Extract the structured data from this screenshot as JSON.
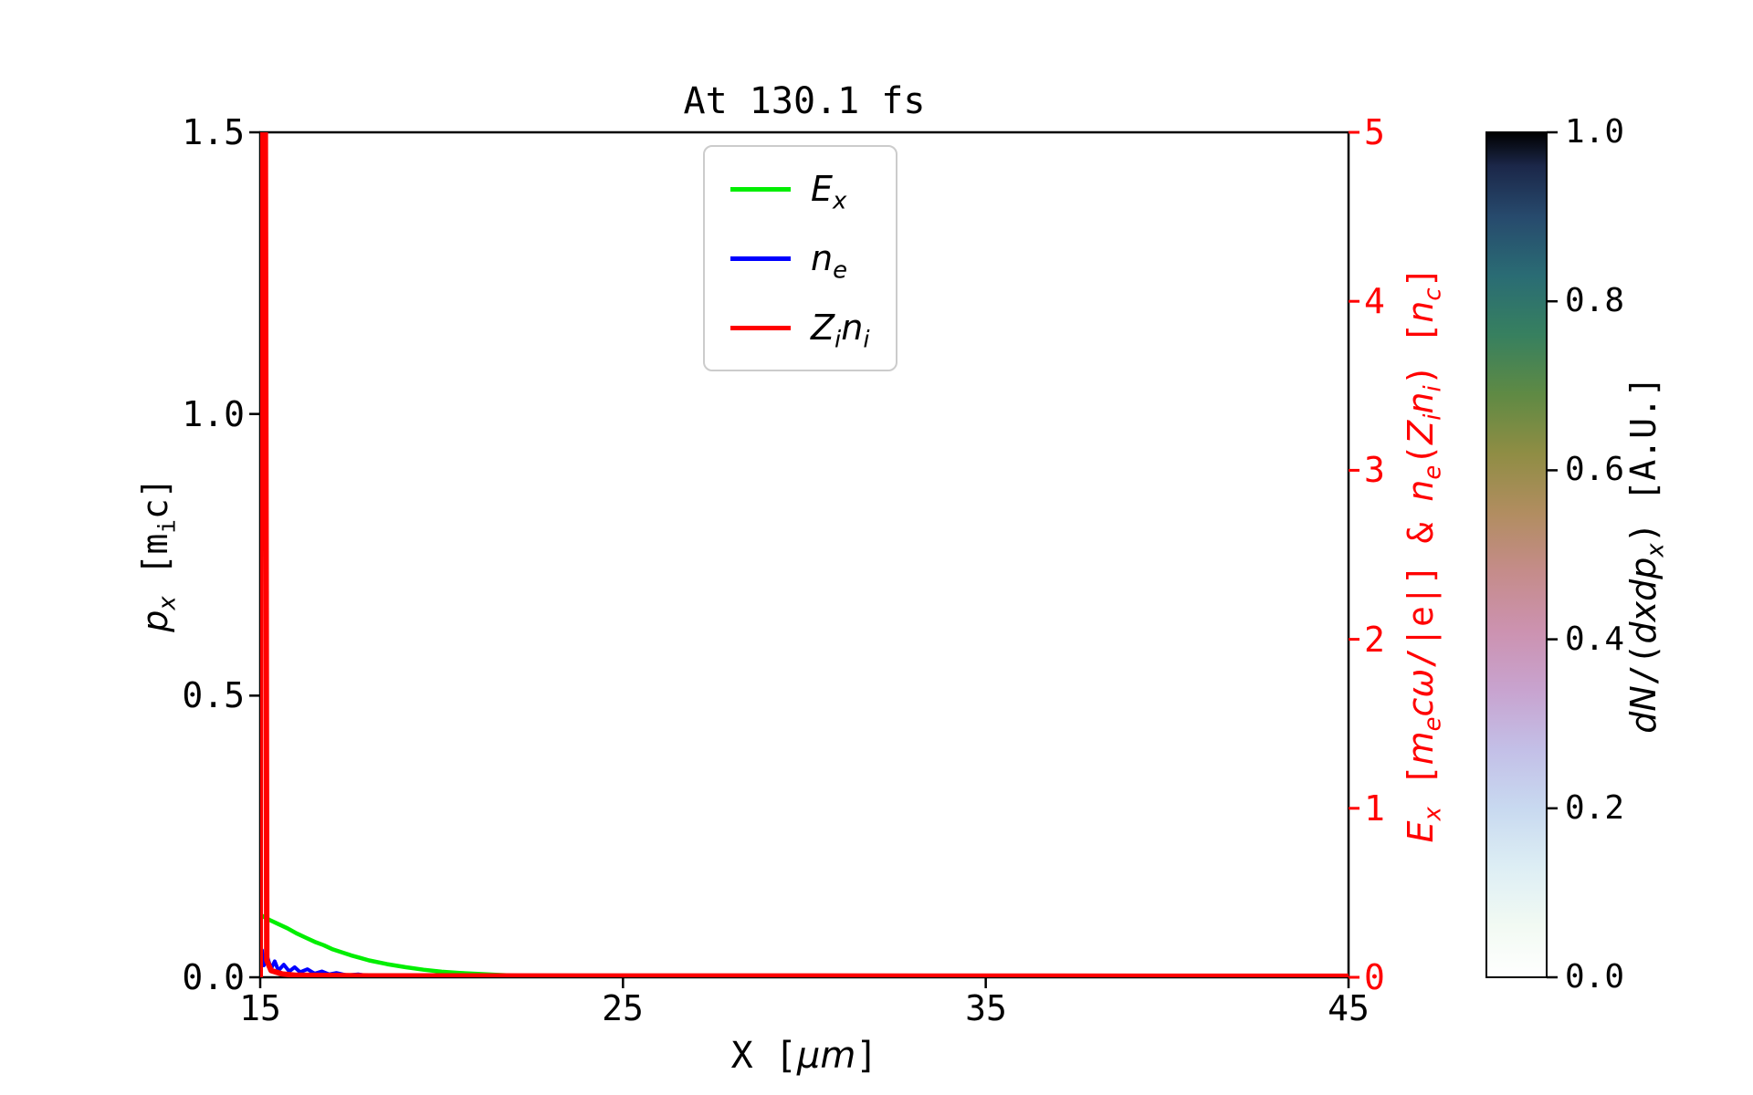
{
  "chart_data": {
    "type": "line",
    "title": "At 130.1 fs",
    "xlabel": "X [μm]",
    "ylabel_left": "p_x [m_i c]",
    "ylabel_right": "E_x [m_e cω/|e|] & n_e(Z_i n_i) [n_c]",
    "xlim": [
      15,
      45
    ],
    "ylim_left": [
      0.0,
      1.5
    ],
    "ylim_right": [
      0,
      5
    ],
    "x_ticks": [
      "15",
      "25",
      "35",
      "45"
    ],
    "y_ticks_left": [
      "0.0",
      "0.5",
      "1.0",
      "1.5"
    ],
    "y_ticks_right": [
      "0",
      "1",
      "2",
      "3",
      "4",
      "5"
    ],
    "right_axis_color": "#ff0000",
    "grid": false,
    "legend_position": "upper center",
    "series": [
      {
        "name": "E_x",
        "axis": "right",
        "color": "#00ee00",
        "width": 4.5,
        "points": [
          [
            15.0,
            0.37
          ],
          [
            15.25,
            0.34
          ],
          [
            15.5,
            0.315
          ],
          [
            15.75,
            0.29
          ],
          [
            16.0,
            0.26
          ],
          [
            16.25,
            0.235
          ],
          [
            16.5,
            0.21
          ],
          [
            16.75,
            0.19
          ],
          [
            17.0,
            0.165
          ],
          [
            17.25,
            0.148
          ],
          [
            17.5,
            0.13
          ],
          [
            17.75,
            0.115
          ],
          [
            18.0,
            0.1
          ],
          [
            18.5,
            0.078
          ],
          [
            19.0,
            0.06
          ],
          [
            19.5,
            0.045
          ],
          [
            20.0,
            0.033
          ],
          [
            20.5,
            0.026
          ],
          [
            21.0,
            0.02
          ],
          [
            21.5,
            0.015
          ],
          [
            22.0,
            0.01
          ],
          [
            23.0,
            0.005
          ],
          [
            24.0,
            0.002
          ],
          [
            25.0,
            0.001
          ],
          [
            30.0,
            0.001
          ],
          [
            45.0,
            0.001
          ]
        ]
      },
      {
        "name": "n_e",
        "axis": "right",
        "color": "#0000ff",
        "width": 4,
        "points": [
          [
            15.0,
            0.01
          ],
          [
            15.05,
            0.16
          ],
          [
            15.1,
            0.07
          ],
          [
            15.2,
            0.12
          ],
          [
            15.3,
            0.05
          ],
          [
            15.4,
            0.095
          ],
          [
            15.5,
            0.04
          ],
          [
            15.65,
            0.075
          ],
          [
            15.8,
            0.035
          ],
          [
            15.95,
            0.06
          ],
          [
            16.1,
            0.03
          ],
          [
            16.3,
            0.048
          ],
          [
            16.5,
            0.022
          ],
          [
            16.7,
            0.035
          ],
          [
            16.9,
            0.018
          ],
          [
            17.1,
            0.026
          ],
          [
            17.4,
            0.012
          ],
          [
            17.7,
            0.018
          ],
          [
            18.0,
            0.008
          ],
          [
            18.5,
            0.01
          ],
          [
            19.0,
            0.005
          ],
          [
            20.0,
            0.004
          ],
          [
            22.0,
            0.002
          ],
          [
            45.0,
            0.002
          ]
        ]
      },
      {
        "name": "Z_i n_i",
        "axis": "right",
        "color": "#ff0000",
        "width": 6,
        "points": [
          [
            15.0,
            0.0
          ],
          [
            15.02,
            5.0
          ],
          [
            15.14,
            5.0
          ],
          [
            15.18,
            0.1
          ],
          [
            15.3,
            0.04
          ],
          [
            15.6,
            0.02
          ],
          [
            16.0,
            0.012
          ],
          [
            18.0,
            0.008
          ],
          [
            45.0,
            0.006
          ]
        ]
      }
    ],
    "colorbar": {
      "label": "dN/(dxdp_x) [A.U.]",
      "range": [
        0.0,
        1.0
      ],
      "ticks": [
        "0.0",
        "0.2",
        "0.4",
        "0.6",
        "0.8",
        "1.0"
      ],
      "colormap": "cubehelix_r",
      "stops": [
        [
          0.0,
          "#ffffff"
        ],
        [
          0.06,
          "#f2faf3"
        ],
        [
          0.13,
          "#ddeef4"
        ],
        [
          0.2,
          "#c8d9f0"
        ],
        [
          0.27,
          "#c3bfe7"
        ],
        [
          0.34,
          "#c8a3cf"
        ],
        [
          0.41,
          "#cc92b0"
        ],
        [
          0.48,
          "#c58c8a"
        ],
        [
          0.55,
          "#b18d60"
        ],
        [
          0.62,
          "#8f8d44"
        ],
        [
          0.69,
          "#5f8a44"
        ],
        [
          0.76,
          "#37805f"
        ],
        [
          0.83,
          "#2a6c74"
        ],
        [
          0.9,
          "#274a6d"
        ],
        [
          0.96,
          "#1b2749"
        ],
        [
          1.0,
          "#000000"
        ]
      ]
    },
    "phase_space_note": "2D density dN/(dxdp_x) over (X, p_x) is ~0 (white) everywhere visible; signal concentrated at x ≈ 15 μm, p_x ≈ 0"
  },
  "labels": {
    "xlabel_parts": [
      {
        "t": "X ["
      },
      {
        "t": "μ",
        "i": 1
      },
      {
        "t": "m",
        "i": 1
      },
      {
        "t": "]"
      }
    ],
    "left_parts": [
      {
        "t": "p",
        "i": 1
      },
      {
        "t": "x",
        "sub": 1,
        "i": 1
      },
      {
        "t": " [m"
      },
      {
        "t": "i",
        "sub": 1
      },
      {
        "t": "c]"
      }
    ],
    "right_parts": [
      {
        "t": "E",
        "i": 1
      },
      {
        "t": "x",
        "sub": 1,
        "i": 1
      },
      {
        "t": " ["
      },
      {
        "t": "m",
        "i": 1
      },
      {
        "t": "e",
        "sub": 1,
        "i": 1
      },
      {
        "t": "c",
        "i": 1
      },
      {
        "t": "ω",
        "i": 1
      },
      {
        "t": "/|e|] & "
      },
      {
        "t": "n",
        "i": 1
      },
      {
        "t": "e",
        "sub": 1,
        "i": 1
      },
      {
        "t": "("
      },
      {
        "t": "Z",
        "i": 1
      },
      {
        "t": "i",
        "sub": 1,
        "i": 1
      },
      {
        "t": "n",
        "i": 1
      },
      {
        "t": "i",
        "sub": 1,
        "i": 1
      },
      {
        "t": ") ["
      },
      {
        "t": "n",
        "i": 1
      },
      {
        "t": "c",
        "sub": 1,
        "i": 1
      },
      {
        "t": "]"
      }
    ],
    "cbar_parts": [
      {
        "t": "d",
        "i": 1
      },
      {
        "t": "N",
        "i": 1
      },
      {
        "t": "/("
      },
      {
        "t": "d",
        "i": 1
      },
      {
        "t": "x",
        "i": 1
      },
      {
        "t": "d",
        "i": 1
      },
      {
        "t": "p",
        "i": 1
      },
      {
        "t": "x",
        "sub": 1,
        "i": 1
      },
      {
        "t": ") [A.U.]"
      }
    ]
  },
  "legend": {
    "items": [
      {
        "label_parts": [
          {
            "t": "E",
            "i": 1
          },
          {
            "t": "x",
            "sub": 1,
            "i": 1
          }
        ]
      },
      {
        "label_parts": [
          {
            "t": "n",
            "i": 1
          },
          {
            "t": "e",
            "sub": 1,
            "i": 1
          }
        ]
      },
      {
        "label_parts": [
          {
            "t": "Z",
            "i": 1
          },
          {
            "t": "i",
            "sub": 1,
            "i": 1
          },
          {
            "t": "n",
            "i": 1
          },
          {
            "t": "i",
            "sub": 1,
            "i": 1
          }
        ]
      }
    ]
  }
}
